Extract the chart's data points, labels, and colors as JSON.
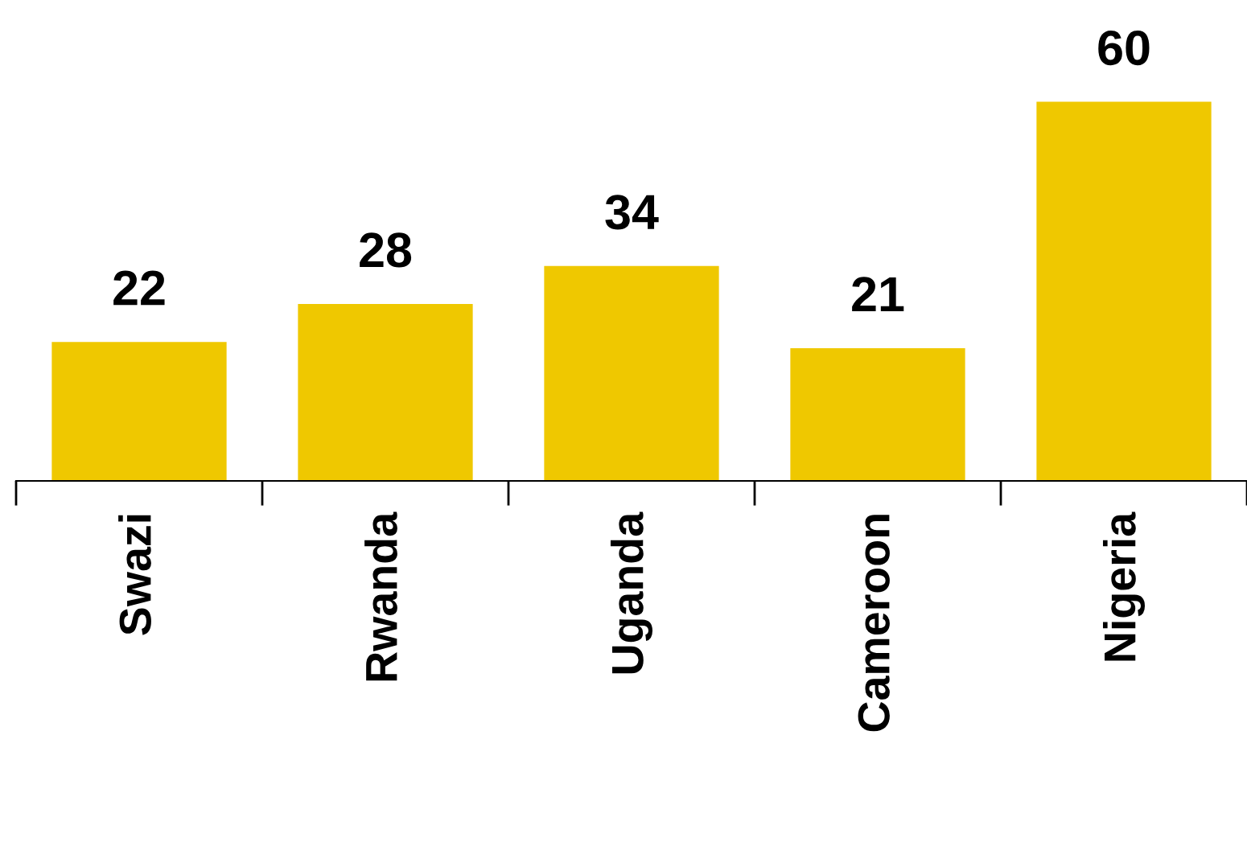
{
  "chart_data": {
    "type": "bar",
    "categories": [
      "Swazi",
      "Rwanda",
      "Uganda",
      "Cameroon",
      "Nigeria"
    ],
    "values": [
      22,
      28,
      34,
      21,
      60
    ],
    "color": "#efc800",
    "data_labels": true,
    "grid": false,
    "legend": false
  }
}
